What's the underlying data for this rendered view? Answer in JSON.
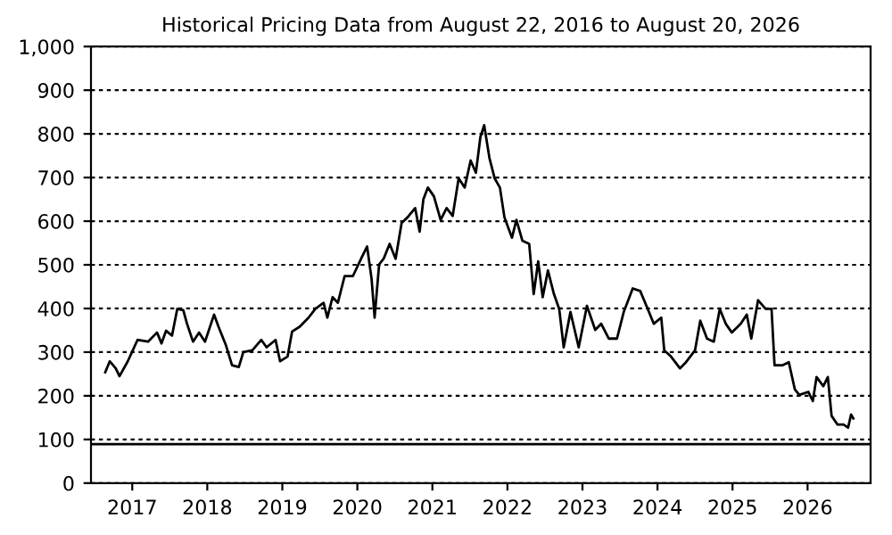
{
  "chart_data": {
    "type": "line",
    "title": "Historical Pricing Data from August 22, 2016 to August 20, 2026",
    "x": [
      2016.64,
      2016.7,
      2016.78,
      2016.83,
      2016.94,
      2017.07,
      2017.21,
      2017.33,
      2017.39,
      2017.45,
      2017.53,
      2017.6,
      2017.68,
      2017.73,
      2017.81,
      2017.89,
      2017.97,
      2018.09,
      2018.15,
      2018.25,
      2018.33,
      2018.42,
      2018.48,
      2018.6,
      2018.72,
      2018.79,
      2018.91,
      2018.97,
      2019.07,
      2019.13,
      2019.23,
      2019.35,
      2019.44,
      2019.55,
      2019.6,
      2019.67,
      2019.74,
      2019.83,
      2019.94,
      2020.05,
      2020.13,
      2020.19,
      2020.23,
      2020.29,
      2020.35,
      2020.43,
      2020.51,
      2020.59,
      2020.67,
      2020.77,
      2020.83,
      2020.88,
      2020.94,
      2021.02,
      2021.11,
      2021.19,
      2021.27,
      2021.35,
      2021.43,
      2021.51,
      2021.58,
      2021.64,
      2021.69,
      2021.76,
      2021.83,
      2021.9,
      2021.96,
      2022.06,
      2022.12,
      2022.2,
      2022.29,
      2022.35,
      2022.41,
      2022.47,
      2022.54,
      2022.62,
      2022.69,
      2022.75,
      2022.84,
      2022.95,
      2023.06,
      2023.17,
      2023.25,
      2023.35,
      2023.46,
      2023.55,
      2023.67,
      2023.77,
      2023.87,
      2023.95,
      2024.05,
      2024.09,
      2024.18,
      2024.3,
      2024.38,
      2024.5,
      2024.57,
      2024.66,
      2024.75,
      2024.83,
      2024.91,
      2024.99,
      2025.11,
      2025.19,
      2025.25,
      2025.34,
      2025.44,
      2025.52,
      2025.56,
      2025.67,
      2025.75,
      2025.83,
      2025.89,
      2026.01,
      2026.07,
      2026.12,
      2026.21,
      2026.27,
      2026.32,
      2026.4,
      2026.48,
      2026.54,
      2026.58,
      2026.61
    ],
    "series": [
      {
        "color": "#000000",
        "values": [
          254,
          279,
          263,
          245,
          279,
          328,
          324,
          345,
          320,
          349,
          338,
          399,
          396,
          365,
          324,
          345,
          324,
          386,
          358,
          315,
          270,
          266,
          300,
          304,
          328,
          311,
          328,
          279,
          290,
          347,
          358,
          379,
          399,
          413,
          379,
          426,
          413,
          474,
          474,
          514,
          542,
          467,
          379,
          501,
          514,
          548,
          514,
          596,
          609,
          630,
          576,
          650,
          677,
          657,
          603,
          630,
          612,
          698,
          677,
          739,
          711,
          793,
          820,
          745,
          698,
          677,
          609,
          562,
          603,
          555,
          548,
          433,
          508,
          426,
          487,
          433,
          399,
          311,
          392,
          311,
          406,
          351,
          365,
          331,
          331,
          392,
          446,
          440,
          399,
          365,
          379,
          304,
          290,
          263,
          277,
          304,
          372,
          331,
          324,
          399,
          365,
          345,
          365,
          386,
          331,
          419,
          399,
          399,
          270,
          270,
          277,
          215,
          202,
          209,
          188,
          243,
          222,
          243,
          154,
          134,
          134,
          127,
          157,
          148
        ]
      }
    ],
    "xlim": [
      2016.45,
      2026.84
    ],
    "xticks": [
      2017,
      2018,
      2019,
      2020,
      2021,
      2022,
      2023,
      2024,
      2025,
      2026
    ],
    "ylim": [
      0,
      1000
    ],
    "yticks": [
      0,
      100,
      200,
      300,
      400,
      500,
      600,
      700,
      800,
      900,
      {
        "value": 1000,
        "label": "1,000"
      }
    ],
    "grid": "y",
    "ref_lines": [
      {
        "axis": "y",
        "value": 89,
        "color": "#000000",
        "line_style": "solid"
      }
    ]
  }
}
